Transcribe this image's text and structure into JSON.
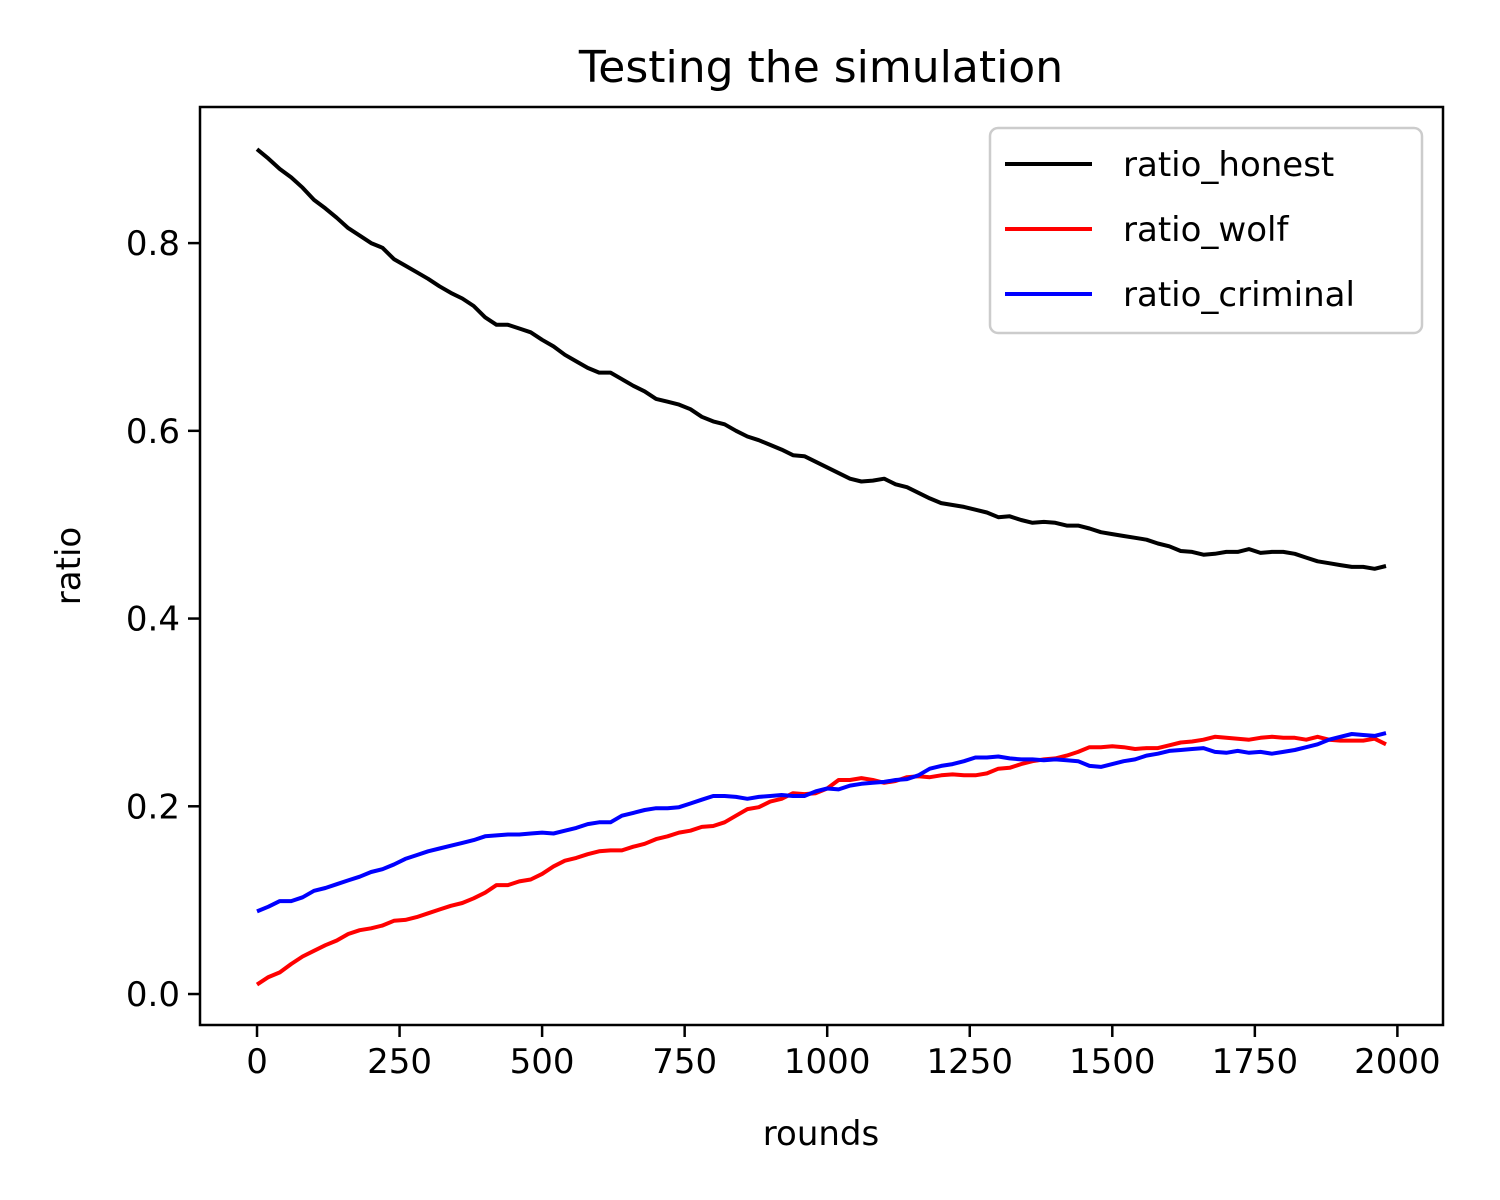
{
  "chart_data": {
    "type": "line",
    "title": "Testing the simulation",
    "xlabel": "rounds",
    "ylabel": "ratio",
    "xlim": [
      -100,
      2080
    ],
    "ylim": [
      -0.033,
      0.945
    ],
    "xticks": [
      0,
      250,
      500,
      750,
      1000,
      1250,
      1500,
      1750,
      2000
    ],
    "yticks": [
      0.0,
      0.2,
      0.4,
      0.6,
      0.8
    ],
    "ytick_labels": [
      "0.0",
      "0.2",
      "0.4",
      "0.6",
      "0.8"
    ],
    "grid": false,
    "legend_position": "top-right",
    "x": [
      0,
      20,
      40,
      60,
      80,
      100,
      120,
      140,
      160,
      180,
      200,
      220,
      240,
      260,
      280,
      300,
      320,
      340,
      360,
      380,
      400,
      420,
      440,
      460,
      480,
      500,
      520,
      540,
      560,
      580,
      600,
      620,
      640,
      660,
      680,
      700,
      720,
      740,
      760,
      780,
      800,
      820,
      840,
      860,
      880,
      900,
      920,
      940,
      960,
      980,
      1000,
      1020,
      1040,
      1060,
      1080,
      1100,
      1120,
      1140,
      1160,
      1180,
      1200,
      1220,
      1240,
      1260,
      1280,
      1300,
      1320,
      1340,
      1360,
      1380,
      1400,
      1420,
      1440,
      1460,
      1480,
      1500,
      1520,
      1540,
      1560,
      1580,
      1600,
      1620,
      1640,
      1660,
      1680,
      1700,
      1720,
      1740,
      1760,
      1780,
      1800,
      1820,
      1840,
      1860,
      1880,
      1900,
      1920,
      1940,
      1960,
      1980
    ],
    "series": [
      {
        "name": "ratio_honest",
        "color": "#000000",
        "values": [
          0.9,
          0.89,
          0.879,
          0.87,
          0.859,
          0.846,
          0.837,
          0.827,
          0.816,
          0.808,
          0.8,
          0.795,
          0.783,
          0.776,
          0.769,
          0.762,
          0.754,
          0.747,
          0.741,
          0.733,
          0.721,
          0.713,
          0.713,
          0.709,
          0.705,
          0.697,
          0.69,
          0.681,
          0.674,
          0.667,
          0.662,
          0.662,
          0.655,
          0.648,
          0.642,
          0.634,
          0.631,
          0.628,
          0.623,
          0.615,
          0.61,
          0.607,
          0.6,
          0.594,
          0.59,
          0.585,
          0.58,
          0.574,
          0.573,
          0.567,
          0.561,
          0.555,
          0.549,
          0.546,
          0.547,
          0.549,
          0.543,
          0.54,
          0.534,
          0.528,
          0.523,
          0.521,
          0.519,
          0.516,
          0.513,
          0.508,
          0.509,
          0.505,
          0.502,
          0.503,
          0.502,
          0.499,
          0.499,
          0.496,
          0.492,
          0.49,
          0.488,
          0.486,
          0.484,
          0.48,
          0.477,
          0.472,
          0.471,
          0.468,
          0.469,
          0.471,
          0.471,
          0.474,
          0.47,
          0.471,
          0.471,
          0.469,
          0.465,
          0.461,
          0.459,
          0.457,
          0.455,
          0.455,
          0.453,
          0.456
        ]
      },
      {
        "name": "ratio_wolf",
        "color": "#ff0000",
        "values": [
          0.01,
          0.018,
          0.023,
          0.032,
          0.04,
          0.046,
          0.052,
          0.057,
          0.064,
          0.068,
          0.07,
          0.073,
          0.078,
          0.079,
          0.082,
          0.086,
          0.09,
          0.094,
          0.097,
          0.102,
          0.108,
          0.116,
          0.116,
          0.12,
          0.122,
          0.128,
          0.136,
          0.142,
          0.145,
          0.149,
          0.152,
          0.153,
          0.153,
          0.157,
          0.16,
          0.165,
          0.168,
          0.172,
          0.174,
          0.178,
          0.179,
          0.183,
          0.19,
          0.197,
          0.199,
          0.205,
          0.208,
          0.214,
          0.213,
          0.214,
          0.219,
          0.228,
          0.228,
          0.23,
          0.228,
          0.225,
          0.227,
          0.231,
          0.232,
          0.231,
          0.233,
          0.234,
          0.233,
          0.233,
          0.235,
          0.24,
          0.241,
          0.245,
          0.248,
          0.25,
          0.251,
          0.254,
          0.258,
          0.263,
          0.263,
          0.264,
          0.263,
          0.261,
          0.262,
          0.262,
          0.265,
          0.268,
          0.269,
          0.271,
          0.274,
          0.273,
          0.272,
          0.271,
          0.273,
          0.274,
          0.273,
          0.273,
          0.271,
          0.274,
          0.271,
          0.27,
          0.27,
          0.27,
          0.272,
          0.266
        ]
      },
      {
        "name": "ratio_criminal",
        "color": "#0000ff",
        "values": [
          0.088,
          0.093,
          0.099,
          0.099,
          0.103,
          0.11,
          0.113,
          0.117,
          0.121,
          0.125,
          0.13,
          0.133,
          0.138,
          0.144,
          0.148,
          0.152,
          0.155,
          0.158,
          0.161,
          0.164,
          0.168,
          0.169,
          0.17,
          0.17,
          0.171,
          0.172,
          0.171,
          0.174,
          0.177,
          0.181,
          0.183,
          0.183,
          0.19,
          0.193,
          0.196,
          0.198,
          0.198,
          0.199,
          0.203,
          0.207,
          0.211,
          0.211,
          0.21,
          0.208,
          0.21,
          0.211,
          0.212,
          0.211,
          0.211,
          0.216,
          0.219,
          0.218,
          0.222,
          0.224,
          0.225,
          0.226,
          0.228,
          0.229,
          0.233,
          0.24,
          0.243,
          0.245,
          0.248,
          0.252,
          0.252,
          0.253,
          0.251,
          0.25,
          0.25,
          0.249,
          0.25,
          0.249,
          0.248,
          0.243,
          0.242,
          0.245,
          0.248,
          0.25,
          0.254,
          0.256,
          0.259,
          0.26,
          0.261,
          0.262,
          0.258,
          0.257,
          0.259,
          0.257,
          0.258,
          0.256,
          0.258,
          0.26,
          0.263,
          0.266,
          0.271,
          0.274,
          0.277,
          0.276,
          0.275,
          0.278
        ]
      }
    ]
  }
}
